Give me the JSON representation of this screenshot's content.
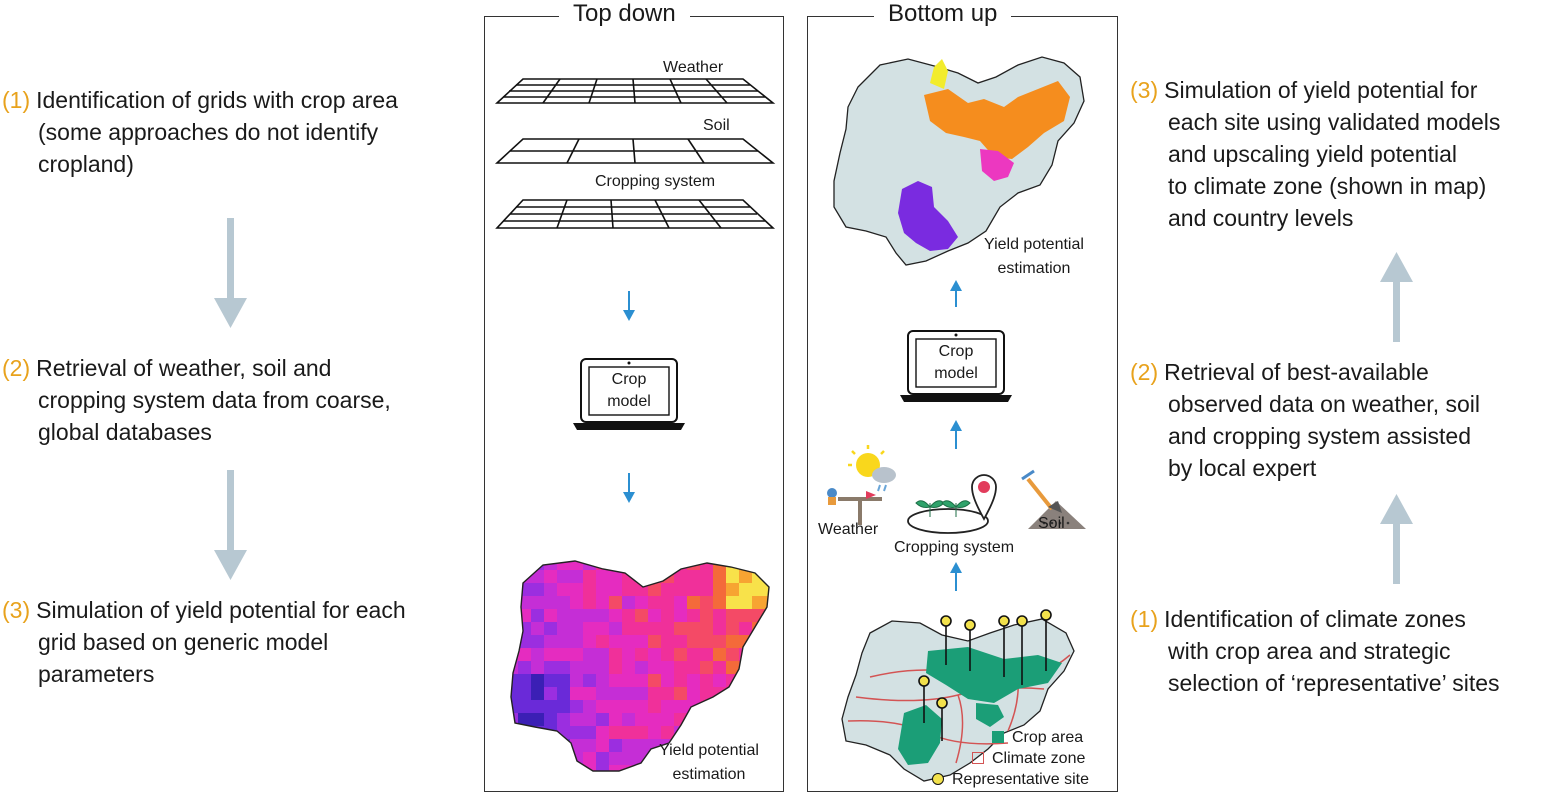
{
  "colors": {
    "step_number": "#e8a21c",
    "process_arrow": "#b7c8d2",
    "inner_arrow": "#2b8fd1",
    "map_fill": "#d3e1e3",
    "crop_area": "#1b9e77",
    "climate_zone": "#d35454",
    "site_marker": "#f2e14c"
  },
  "left": {
    "steps": [
      {
        "num": "(1)",
        "lines": [
          "Identification of grids with crop area",
          "(some approaches do not identify",
          "cropland)"
        ]
      },
      {
        "num": "(2)",
        "lines": [
          "Retrieval of weather, soil and",
          "cropping system data from coarse,",
          "global databases"
        ]
      },
      {
        "num": "(3)",
        "lines": [
          "Simulation of yield potential for each",
          "grid based on generic model",
          "parameters"
        ]
      }
    ]
  },
  "top_down": {
    "title": "Top down",
    "layers": [
      "Weather",
      "Soil",
      "Cropping system"
    ],
    "laptop": [
      "Crop",
      "model"
    ],
    "result": [
      "Yield potential",
      "estimation"
    ]
  },
  "bottom_up": {
    "title": "Bottom up",
    "result": [
      "Yield potential",
      "estimation"
    ],
    "laptop": [
      "Crop",
      "model"
    ],
    "inputs": [
      "Weather",
      "Cropping system",
      "Soil"
    ],
    "legend": [
      "Crop area",
      "Climate zone",
      "Representative site"
    ]
  },
  "right": {
    "steps": [
      {
        "num": "(3)",
        "lines": [
          "Simulation of yield potential for",
          "each site using validated models",
          "and upscaling yield potential",
          "to climate zone (shown in map)",
          "and country levels"
        ]
      },
      {
        "num": "(2)",
        "lines": [
          "Retrieval of best-available",
          "observed data on weather, soil",
          "and cropping system assisted",
          "by local expert"
        ]
      },
      {
        "num": "(1)",
        "lines": [
          "Identification of climate zones",
          "with crop area and strategic",
          "selection of ‘representative’ sites"
        ]
      }
    ]
  }
}
